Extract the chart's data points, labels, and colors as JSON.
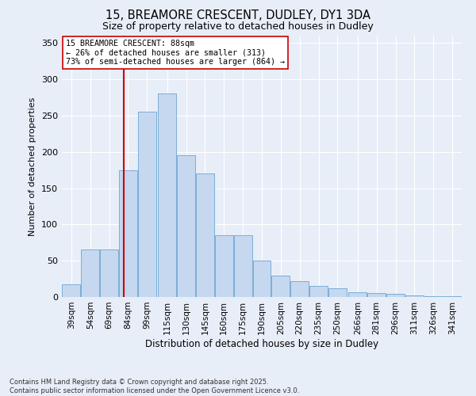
{
  "title1": "15, BREAMORE CRESCENT, DUDLEY, DY1 3DA",
  "title2": "Size of property relative to detached houses in Dudley",
  "xlabel": "Distribution of detached houses by size in Dudley",
  "ylabel": "Number of detached properties",
  "bin_labels": [
    "39sqm",
    "54sqm",
    "69sqm",
    "84sqm",
    "99sqm",
    "115sqm",
    "130sqm",
    "145sqm",
    "160sqm",
    "175sqm",
    "190sqm",
    "205sqm",
    "220sqm",
    "235sqm",
    "250sqm",
    "266sqm",
    "281sqm",
    "296sqm",
    "311sqm",
    "326sqm",
    "341sqm"
  ],
  "bar_heights": [
    18,
    65,
    65,
    175,
    255,
    280,
    195,
    170,
    85,
    85,
    50,
    30,
    22,
    15,
    12,
    7,
    5,
    4,
    2,
    1,
    1
  ],
  "bar_color": "#c5d8f0",
  "bar_edge_color": "#7aaed6",
  "vline_x": 88,
  "vline_color": "#cc0000",
  "annotation_text": "15 BREAMORE CRESCENT: 88sqm\n← 26% of detached houses are smaller (313)\n73% of semi-detached houses are larger (864) →",
  "annotation_box_color": "#ffffff",
  "annotation_box_edge": "#cc0000",
  "footer": "Contains HM Land Registry data © Crown copyright and database right 2025.\nContains public sector information licensed under the Open Government Licence v3.0.",
  "bg_color": "#e8eef8",
  "grid_color": "#ffffff",
  "ylim": [
    0,
    360
  ],
  "yticks": [
    0,
    50,
    100,
    150,
    200,
    250,
    300,
    350
  ]
}
